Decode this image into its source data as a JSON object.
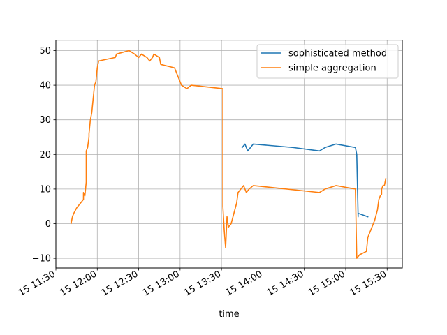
{
  "chart_data": {
    "type": "line",
    "title": "",
    "xlabel": "time",
    "ylabel": "",
    "x_unit": "datetime",
    "xlim": [
      "2000-01-15T11:30",
      "2000-01-15T15:41"
    ],
    "ylim": [
      -12.8,
      53.0
    ],
    "grid": true,
    "legend_position": "top-right",
    "x_ticks": [
      {
        "t": "2000-01-15T11:30",
        "label": "15 11:30"
      },
      {
        "t": "2000-01-15T12:00",
        "label": "15 12:00"
      },
      {
        "t": "2000-01-15T12:30",
        "label": "15 12:30"
      },
      {
        "t": "2000-01-15T13:00",
        "label": "15 13:00"
      },
      {
        "t": "2000-01-15T13:30",
        "label": "15 13:30"
      },
      {
        "t": "2000-01-15T14:00",
        "label": "15 14:00"
      },
      {
        "t": "2000-01-15T14:30",
        "label": "15 14:30"
      },
      {
        "t": "2000-01-15T15:00",
        "label": "15 15:00"
      },
      {
        "t": "2000-01-15T15:30",
        "label": "15 15:30"
      }
    ],
    "y_ticks": [
      {
        "v": -10,
        "label": "−10"
      },
      {
        "v": 0,
        "label": "0"
      },
      {
        "v": 10,
        "label": "10"
      },
      {
        "v": 20,
        "label": "20"
      },
      {
        "v": 30,
        "label": "30"
      },
      {
        "v": 40,
        "label": "40"
      },
      {
        "v": 50,
        "label": "50"
      }
    ],
    "series": [
      {
        "name": "sophisticated method",
        "color": "#1f77b4",
        "points": [
          [
            "2000-01-15T13:45",
            22
          ],
          [
            "2000-01-15T13:47",
            23
          ],
          [
            "2000-01-15T13:49",
            21
          ],
          [
            "2000-01-15T13:51",
            22
          ],
          [
            "2000-01-15T13:53",
            23
          ],
          [
            "2000-01-15T14:22",
            22
          ],
          [
            "2000-01-15T14:41",
            21
          ],
          [
            "2000-01-15T14:45",
            22
          ],
          [
            "2000-01-15T14:53",
            23
          ],
          [
            "2000-01-15T15:07",
            22
          ],
          [
            "2000-01-15T15:08",
            20
          ],
          [
            "2000-01-15T15:09",
            2
          ],
          [
            "2000-01-15T15:09",
            3
          ],
          [
            "2000-01-15T15:16",
            2
          ]
        ]
      },
      {
        "name": "simple aggregation",
        "color": "#ff7f0e",
        "points": [
          [
            "2000-01-15T11:41",
            1
          ],
          [
            "2000-01-15T11:41",
            0
          ],
          [
            "2000-01-15T11:42",
            2
          ],
          [
            "2000-01-15T11:43",
            3
          ],
          [
            "2000-01-15T11:45",
            4.5
          ],
          [
            "2000-01-15T11:50",
            7
          ],
          [
            "2000-01-15T11:50",
            9
          ],
          [
            "2000-01-15T11:51",
            8
          ],
          [
            "2000-01-15T11:52",
            12
          ],
          [
            "2000-01-15T11:52",
            21
          ],
          [
            "2000-01-15T11:53",
            22
          ],
          [
            "2000-01-15T11:54",
            25
          ],
          [
            "2000-01-15T11:54",
            26
          ],
          [
            "2000-01-15T11:55",
            30
          ],
          [
            "2000-01-15T11:56",
            32
          ],
          [
            "2000-01-15T11:57",
            36
          ],
          [
            "2000-01-15T11:58",
            40
          ],
          [
            "2000-01-15T11:59",
            41
          ],
          [
            "2000-01-15T12:00",
            45
          ],
          [
            "2000-01-15T12:01",
            47
          ],
          [
            "2000-01-15T12:13",
            48
          ],
          [
            "2000-01-15T12:14",
            49
          ],
          [
            "2000-01-15T12:23",
            50
          ],
          [
            "2000-01-15T12:27",
            49
          ],
          [
            "2000-01-15T12:30",
            48
          ],
          [
            "2000-01-15T12:32",
            49
          ],
          [
            "2000-01-15T12:36",
            48
          ],
          [
            "2000-01-15T12:38",
            47
          ],
          [
            "2000-01-15T12:40",
            48
          ],
          [
            "2000-01-15T12:41",
            49
          ],
          [
            "2000-01-15T12:45",
            48
          ],
          [
            "2000-01-15T12:46",
            46
          ],
          [
            "2000-01-15T12:56",
            45
          ],
          [
            "2000-01-15T13:01",
            40
          ],
          [
            "2000-01-15T13:05",
            39
          ],
          [
            "2000-01-15T13:08",
            40
          ],
          [
            "2000-01-15T13:31",
            39
          ],
          [
            "2000-01-15T13:31",
            5
          ],
          [
            "2000-01-15T13:32",
            -2
          ],
          [
            "2000-01-15T13:33",
            -7
          ],
          [
            "2000-01-15T13:34",
            2
          ],
          [
            "2000-01-15T13:35",
            -1
          ],
          [
            "2000-01-15T13:37",
            0
          ],
          [
            "2000-01-15T13:41",
            6
          ],
          [
            "2000-01-15T13:42",
            9
          ],
          [
            "2000-01-15T13:44",
            10
          ],
          [
            "2000-01-15T13:46",
            11
          ],
          [
            "2000-01-15T13:48",
            9
          ],
          [
            "2000-01-15T13:50",
            10
          ],
          [
            "2000-01-15T13:53",
            11
          ],
          [
            "2000-01-15T14:41",
            9
          ],
          [
            "2000-01-15T14:45",
            10
          ],
          [
            "2000-01-15T14:53",
            11
          ],
          [
            "2000-01-15T15:07",
            10
          ],
          [
            "2000-01-15T15:08",
            -10
          ],
          [
            "2000-01-15T15:10",
            -9
          ],
          [
            "2000-01-15T15:15",
            -8
          ],
          [
            "2000-01-15T15:16",
            -4
          ],
          [
            "2000-01-15T15:18",
            -2
          ],
          [
            "2000-01-15T15:21",
            1
          ],
          [
            "2000-01-15T15:23",
            4
          ],
          [
            "2000-01-15T15:24",
            7
          ],
          [
            "2000-01-15T15:25",
            8
          ],
          [
            "2000-01-15T15:26",
            8.5
          ],
          [
            "2000-01-15T15:26",
            10
          ],
          [
            "2000-01-15T15:27",
            11
          ],
          [
            "2000-01-15T15:28",
            11
          ],
          [
            "2000-01-15T15:29",
            13
          ]
        ]
      }
    ]
  }
}
